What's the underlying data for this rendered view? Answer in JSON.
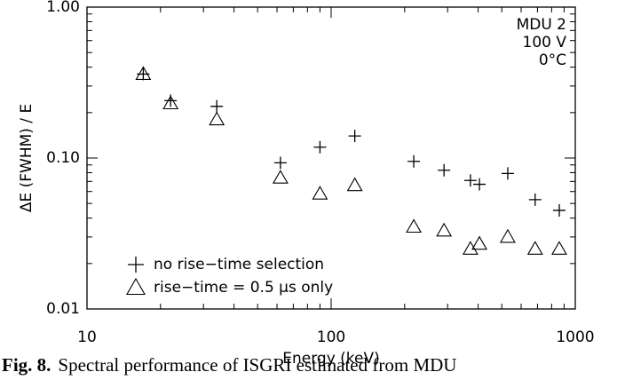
{
  "chart_data": {
    "type": "scatter",
    "xlabel": "Energy (keV)",
    "ylabel": "ΔE (FWHM) / E",
    "annotations": [
      "MDU 2",
      "100 V",
      "0°C"
    ],
    "x": [
      17,
      22,
      34,
      62,
      90,
      125,
      218,
      290,
      372,
      405,
      529,
      685,
      860
    ],
    "series": [
      {
        "name": "no rise−time selection",
        "marker": "plus",
        "color": "#000000",
        "values": [
          0.36,
          0.24,
          0.22,
          0.093,
          0.118,
          0.14,
          0.095,
          0.083,
          0.071,
          0.067,
          0.079,
          0.053,
          0.045
        ]
      },
      {
        "name": "rise−time = 0.5 μs only",
        "marker": "triangle",
        "color": "#000000",
        "values": [
          0.36,
          0.23,
          0.18,
          0.074,
          0.058,
          0.066,
          0.035,
          0.033,
          0.025,
          0.027,
          0.03,
          0.025,
          0.025
        ]
      }
    ],
    "xscale": "log",
    "yscale": "log",
    "xlim": [
      10,
      1000
    ],
    "ylim": [
      0.01,
      1
    ],
    "xticks": [
      10,
      100,
      1000
    ],
    "yticks": [
      0.01,
      {
        "value": 0.1,
        "label": "0.10"
      },
      {
        "value": 1,
        "label": "1.00"
      }
    ],
    "xminorticks": [
      20,
      30,
      40,
      50,
      60,
      70,
      80,
      90,
      200,
      300,
      400,
      500,
      600,
      700,
      800,
      900
    ],
    "yminorticks": [
      0.02,
      0.03,
      0.04,
      0.05,
      0.06,
      0.07,
      0.08,
      0.09,
      0.2,
      0.3,
      0.4,
      0.5,
      0.6,
      0.7,
      0.8,
      0.9
    ],
    "legend": "lower left"
  },
  "caption": {
    "label": "Fig. 8.",
    "text": "Spectral performance of ISGRI estimated from MDU"
  }
}
